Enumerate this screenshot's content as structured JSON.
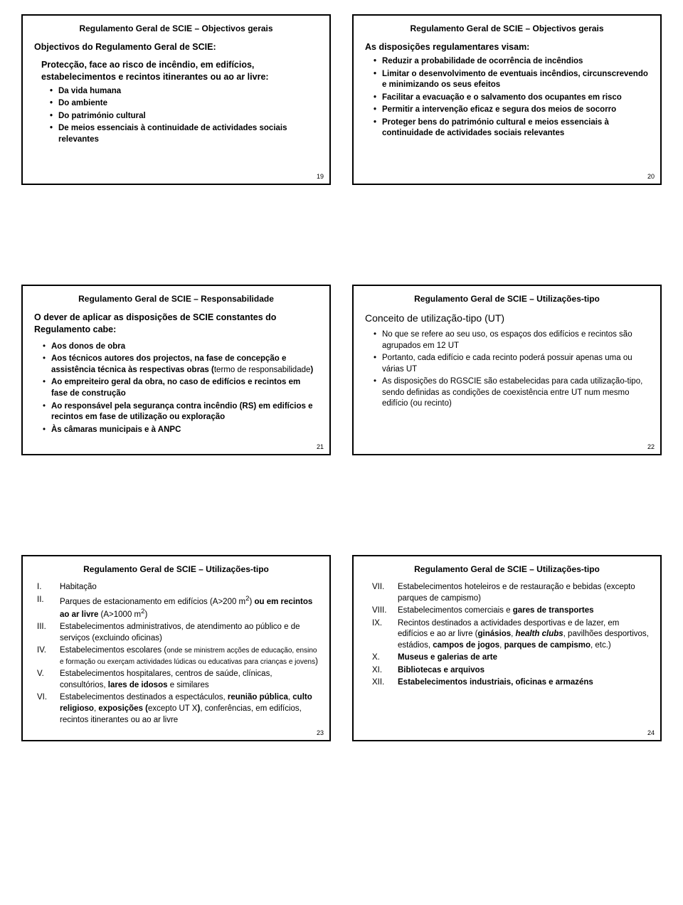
{
  "slides": {
    "s19": {
      "title": "Regulamento Geral de SCIE – Objectivos gerais",
      "heading": "Objectivos do Regulamento Geral de SCIE:",
      "intro": "Protecção, face ao risco de incêndio, em edifícios, estabelecimentos e recintos itinerantes ou ao ar livre:",
      "items": [
        "Da vida humana",
        "Do ambiente",
        "Do património cultural",
        "De meios essenciais à continuidade de actividades sociais relevantes"
      ],
      "num": "19"
    },
    "s20": {
      "title": "Regulamento Geral de SCIE – Objectivos gerais",
      "heading": "As disposições regulamentares visam:",
      "items": [
        "Reduzir a probabilidade de ocorrência de incêndios",
        "Limitar o desenvolvimento de eventuais incêndios, circunscrevendo e minimizando os seus efeitos",
        "Facilitar a evacuação e o salvamento dos ocupantes em risco",
        "Permitir a intervenção eficaz e segura dos meios de socorro",
        "Proteger bens do património cultural e meios essenciais à continuidade de actividades sociais relevantes"
      ],
      "num": "20"
    },
    "s21": {
      "title": "Regulamento Geral de SCIE – Responsabilidade",
      "heading": "O dever de aplicar as disposições de SCIE constantes do Regulamento cabe:",
      "items_html": [
        "<b>Aos donos de obra</b>",
        "<b>Aos técnicos autores dos projectos, na fase de concepção e assistência técnica às respectivas obras (</b>termo de responsabilidade<b>)</b>",
        "<b>Ao empreiteiro geral da obra, no caso de edifícios e recintos em fase de construção</b>",
        "<b>Ao responsável pela segurança contra incêndio (RS) em edifícios e recintos em fase de utilização ou exploração</b>",
        "<b>Às câmaras municipais e à ANPC</b>"
      ],
      "num": "21"
    },
    "s22": {
      "title": "Regulamento Geral de SCIE – Utilizações-tipo",
      "heading": "Conceito de utilização-tipo (UT)",
      "items": [
        "No que se refere ao seu uso, os espaços dos edifícios e recintos são agrupados em 12 UT",
        "Portanto, cada edifício e cada recinto poderá possuir apenas uma ou várias UT",
        "As disposições do RGSCIE são estabelecidas para cada utilização-tipo, sendo definidas as condições de coexistência entre UT num mesmo edifício (ou recinto)"
      ],
      "num": "22"
    },
    "s23": {
      "title": "Regulamento Geral de SCIE – Utilizações-tipo",
      "roman": [
        {
          "n": "I.",
          "html": "Habitação"
        },
        {
          "n": "II.",
          "html": "Parques de estacionamento em edifícios (A>200 m<sup>2</sup>) <b>ou em recintos ao ar livre</b> (A>1000 m<sup>2</sup>)"
        },
        {
          "n": "III.",
          "html": "Estabelecimentos administrativos, de atendimento ao público e de serviços (excluindo oficinas)"
        },
        {
          "n": "IV.",
          "html": "Estabelecimentos escolares (<span style='font-size:10px'>onde se ministrem acções de educação, ensino e formação ou exerçam actividades lúdicas ou educativas para crianças e jovens</span>)"
        },
        {
          "n": "V.",
          "html": "Estabelecimentos hospitalares, centros de saúde, clínicas, consultórios, <b>lares de idosos</b> e similares"
        },
        {
          "n": "VI.",
          "html": "Estabelecimentos destinados a espectáculos, <b>reunião pública</b>, <b>culto religioso</b>, <b>exposições (</b>excepto UT X<b>)</b>, conferências, em edifícios, recintos itinerantes ou ao ar livre"
        }
      ],
      "num": "23"
    },
    "s24": {
      "title": "Regulamento Geral de SCIE – Utilizações-tipo",
      "roman": [
        {
          "n": "VII.",
          "html": "Estabelecimentos hoteleiros e de restauração e bebidas (excepto parques de campismo)"
        },
        {
          "n": "VIII.",
          "html": "Estabelecimentos comerciais e <b>gares de transportes</b>"
        },
        {
          "n": "IX.",
          "html": "Recintos destinados a actividades desportivas e de lazer, em edifícios e ao ar livre (<b>ginásios</b>, <b><i>health clubs</i></b>, pavilhões desportivos, estádios, <b>campos de jogos</b>, <b>parques de campismo</b>, etc.)"
        },
        {
          "n": "X.",
          "html": "<b>Museus e galerias de arte</b>"
        },
        {
          "n": "XI.",
          "html": "<b>Bibliotecas e arquivos</b>"
        },
        {
          "n": "XII.",
          "html": "<b>Estabelecimentos industriais, oficinas e armazéns</b>"
        }
      ],
      "num": "24"
    }
  }
}
